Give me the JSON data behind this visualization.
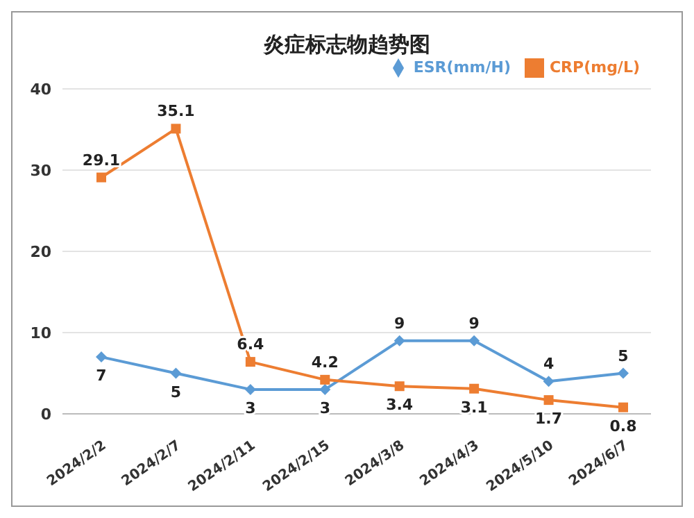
{
  "chart_data": {
    "type": "line",
    "title": "炎症标志物趋势图",
    "categories": [
      "2024/2/2",
      "2024/2/7",
      "2024/2/11",
      "2024/2/15",
      "2024/3/8",
      "2024/4/3",
      "2024/5/10",
      "2024/6/7"
    ],
    "series": [
      {
        "name": "ESR(mm/H)",
        "color": "#5b9bd5",
        "marker": "diamond",
        "values": [
          7,
          5,
          3,
          3,
          9,
          9,
          4,
          5
        ]
      },
      {
        "name": "CRP(mg/L)",
        "color": "#ed7d31",
        "marker": "square",
        "values": [
          29.1,
          35.1,
          6.4,
          4.2,
          3.4,
          3.1,
          1.7,
          0.8
        ]
      }
    ],
    "ylim": [
      0,
      40
    ],
    "yticks": [
      0,
      10,
      20,
      30,
      40
    ],
    "grid": "y",
    "legend": "top right",
    "data_labels": true
  }
}
